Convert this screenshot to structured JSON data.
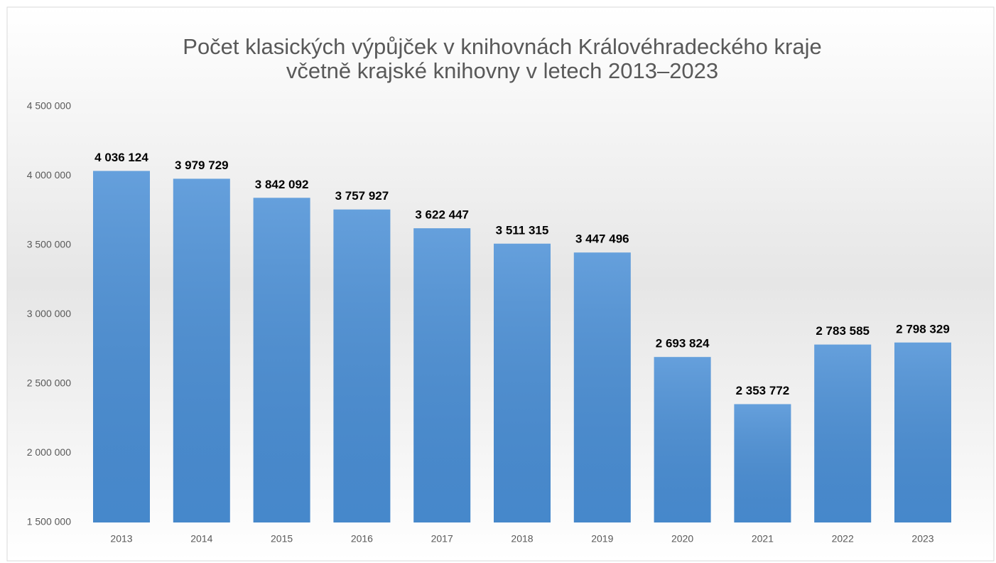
{
  "chart_data": {
    "type": "bar",
    "title": [
      "Počet klasických výpůjček v knihovnách Královéhradeckého kraje",
      "včetně krajské knihovny v letech 2013–2023"
    ],
    "categories": [
      "2013",
      "2014",
      "2015",
      "2016",
      "2017",
      "2018",
      "2019",
      "2020",
      "2021",
      "2022",
      "2023"
    ],
    "values": [
      4036124,
      3979729,
      3842092,
      3757927,
      3622447,
      3511315,
      3447496,
      2693824,
      2353772,
      2783585,
      2798329
    ],
    "value_labels": [
      "4 036 124",
      "3 979 729",
      "3 842 092",
      "3 757 927",
      "3 622 447",
      "3 511 315",
      "3 447 496",
      "2 693 824",
      "2 353 772",
      "2 783 585",
      "2 798 329"
    ],
    "color": "#4a8fd6",
    "ylim": [
      1500000,
      4500000
    ],
    "yticks": [
      {
        "value": 1500000,
        "label": "1 500 000"
      },
      {
        "value": 2000000,
        "label": "2 000 000"
      },
      {
        "value": 2500000,
        "label": "2 500 000"
      },
      {
        "value": 3000000,
        "label": "3 000 000"
      },
      {
        "value": 3500000,
        "label": "3 500 000"
      },
      {
        "value": 4000000,
        "label": "4 000 000"
      },
      {
        "value": 4500000,
        "label": "4 500 000"
      }
    ],
    "grid": false
  }
}
